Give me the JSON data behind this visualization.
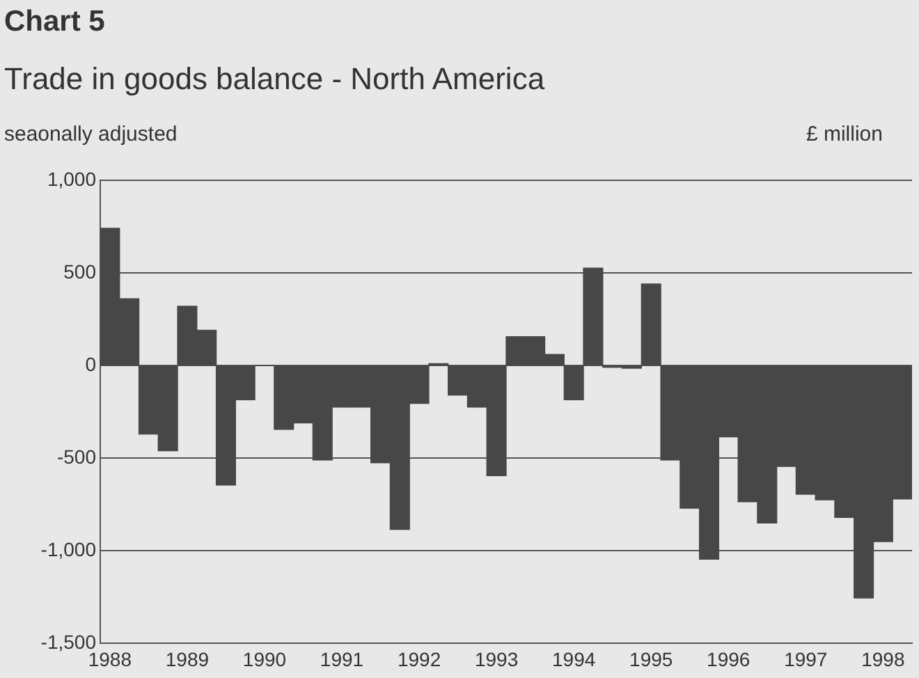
{
  "chart_data": {
    "type": "bar",
    "title": "Chart 5",
    "subtitle": "Trade in goods balance - North America",
    "annotations": [
      "seaonally adjusted"
    ],
    "ylabel": "£ million",
    "categories": [
      "1988",
      null,
      null,
      null,
      "1989",
      null,
      null,
      null,
      "1990",
      null,
      null,
      null,
      "1991",
      null,
      null,
      null,
      "1992",
      null,
      null,
      null,
      "1993",
      null,
      null,
      null,
      "1994",
      null,
      null,
      null,
      "1995",
      null,
      null,
      null,
      "1996",
      null,
      null,
      null,
      "1997",
      null,
      null,
      null,
      "1998",
      null
    ],
    "values": [
      740,
      360,
      -370,
      -460,
      320,
      190,
      -645,
      -185,
      0,
      -345,
      -310,
      -510,
      -225,
      -225,
      -525,
      -885,
      -205,
      10,
      -160,
      -225,
      -595,
      155,
      155,
      60,
      -185,
      525,
      -10,
      -15,
      440,
      -510,
      -770,
      -1045,
      -385,
      -735,
      -850,
      -545,
      -695,
      -725,
      -820,
      -1255,
      -950,
      -720
    ],
    "color": "#474747",
    "ylim": [
      -1500,
      1000
    ],
    "yticks": [
      {
        "value": -1500,
        "label": "-1,500"
      },
      {
        "value": -1000,
        "label": "-1,000"
      },
      {
        "value": -500,
        "label": "-500"
      },
      0,
      500,
      {
        "value": 1000,
        "label": "1,000"
      }
    ],
    "grid": "y"
  }
}
